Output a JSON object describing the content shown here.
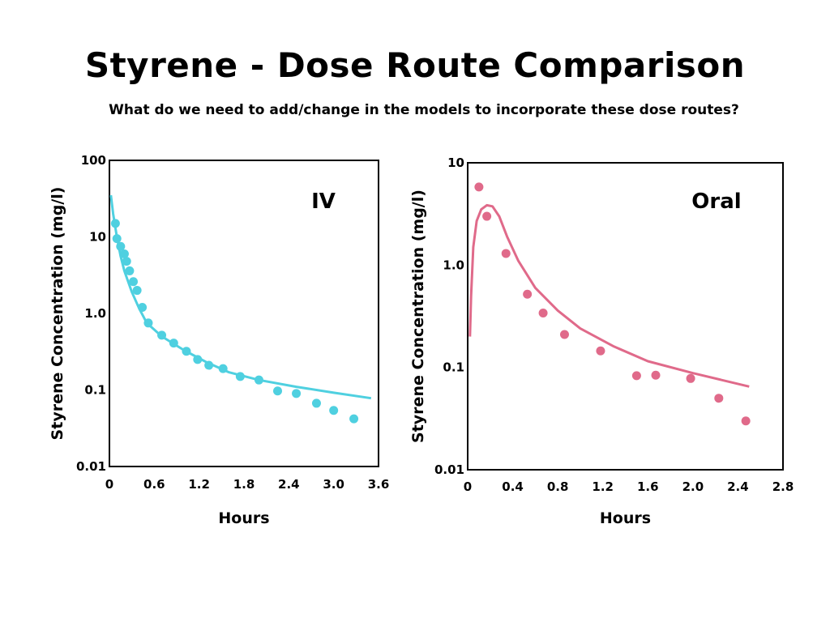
{
  "slide": {
    "title": "Styrene - Dose Route Comparison",
    "subtitle": "What do we need to add/change in the models to incorporate these dose routes?"
  },
  "chart_data": [
    {
      "type": "scatter",
      "title": "IV",
      "xlabel": "Hours",
      "ylabel": "Styrene Concentration (mg/l)",
      "yscale": "log",
      "xlim": [
        0,
        3.6
      ],
      "ylim": [
        0.01,
        100
      ],
      "x_ticks": [
        "0",
        "0.6",
        "1.2",
        "1.8",
        "2.4",
        "3.0",
        "3.6"
      ],
      "y_ticks": [
        "100",
        "10",
        "1.0",
        "0.1",
        "0.01"
      ],
      "color": "#4fd0e0",
      "series": [
        {
          "type": "scatter",
          "points": [
            [
              0.08,
              15
            ],
            [
              0.1,
              9.5
            ],
            [
              0.15,
              7.5
            ],
            [
              0.2,
              6
            ],
            [
              0.23,
              4.8
            ],
            [
              0.27,
              3.6
            ],
            [
              0.32,
              2.6
            ],
            [
              0.37,
              2.0
            ],
            [
              0.44,
              1.2
            ],
            [
              0.52,
              0.75
            ],
            [
              0.7,
              0.52
            ],
            [
              0.86,
              0.41
            ],
            [
              1.03,
              0.32
            ],
            [
              1.18,
              0.25
            ],
            [
              1.33,
              0.21
            ],
            [
              1.52,
              0.19
            ],
            [
              1.75,
              0.15
            ],
            [
              2.0,
              0.135
            ],
            [
              2.25,
              0.097
            ],
            [
              2.5,
              0.09
            ],
            [
              2.77,
              0.067
            ],
            [
              3.0,
              0.054
            ],
            [
              3.27,
              0.042
            ]
          ]
        },
        {
          "type": "line",
          "points": [
            [
              0.02,
              35
            ],
            [
              0.05,
              20
            ],
            [
              0.1,
              10
            ],
            [
              0.15,
              5.6
            ],
            [
              0.2,
              3.6
            ],
            [
              0.3,
              1.9
            ],
            [
              0.4,
              1.15
            ],
            [
              0.5,
              0.75
            ],
            [
              0.7,
              0.5
            ],
            [
              1.0,
              0.33
            ],
            [
              1.3,
              0.23
            ],
            [
              1.6,
              0.17
            ],
            [
              2.0,
              0.135
            ],
            [
              2.5,
              0.11
            ],
            [
              3.0,
              0.092
            ],
            [
              3.5,
              0.078
            ]
          ]
        }
      ]
    },
    {
      "type": "scatter",
      "title": "Oral",
      "xlabel": "Hours",
      "ylabel": "Styrene Concentration (mg/l)",
      "yscale": "log",
      "xlim": [
        0,
        2.8
      ],
      "ylim": [
        0.01,
        10
      ],
      "x_ticks": [
        "0",
        "0.4",
        "0.8",
        "1.2",
        "1.6",
        "2.0",
        "2.4",
        "2.8"
      ],
      "y_ticks": [
        "10",
        "1.0",
        "0.1",
        "0.01"
      ],
      "color": "#e06a8a",
      "series": [
        {
          "type": "scatter",
          "points": [
            [
              0.1,
              5.8
            ],
            [
              0.17,
              3.0
            ],
            [
              0.34,
              1.3
            ],
            [
              0.53,
              0.52
            ],
            [
              0.67,
              0.34
            ],
            [
              0.86,
              0.21
            ],
            [
              1.18,
              0.145
            ],
            [
              1.5,
              0.083
            ],
            [
              1.67,
              0.084
            ],
            [
              1.98,
              0.078
            ],
            [
              2.23,
              0.05
            ],
            [
              2.47,
              0.03
            ]
          ]
        },
        {
          "type": "line",
          "points": [
            [
              0.02,
              0.2
            ],
            [
              0.03,
              0.5
            ],
            [
              0.05,
              1.5
            ],
            [
              0.08,
              2.7
            ],
            [
              0.12,
              3.5
            ],
            [
              0.17,
              3.85
            ],
            [
              0.22,
              3.75
            ],
            [
              0.28,
              3.0
            ],
            [
              0.35,
              1.9
            ],
            [
              0.45,
              1.1
            ],
            [
              0.6,
              0.6
            ],
            [
              0.8,
              0.36
            ],
            [
              1.0,
              0.24
            ],
            [
              1.3,
              0.16
            ],
            [
              1.6,
              0.115
            ],
            [
              2.0,
              0.088
            ],
            [
              2.5,
              0.065
            ]
          ]
        }
      ]
    }
  ]
}
